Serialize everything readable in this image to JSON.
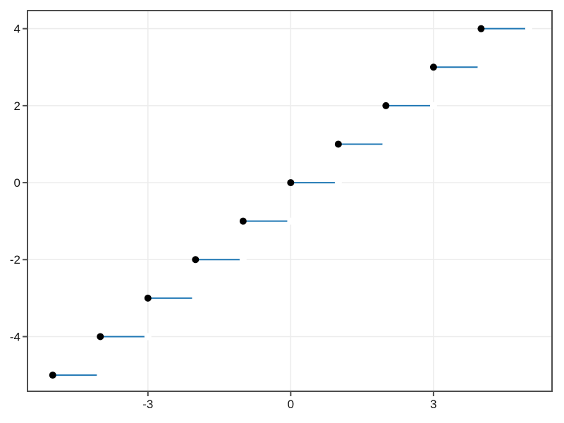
{
  "chart_data": {
    "type": "line",
    "subtype": "step-function-floor",
    "title": "",
    "xlabel": "",
    "ylabel": "",
    "xlim": [
      -5.53,
      5.49
    ],
    "ylim": [
      -5.42,
      4.47
    ],
    "grid": true,
    "legend": false,
    "xticks": [
      -3,
      0,
      3
    ],
    "xtick_labels": [
      "-3",
      "0",
      "3"
    ],
    "yticks": [
      -4,
      -2,
      0,
      2,
      4
    ],
    "ytick_labels": [
      "-4",
      "-2",
      "0",
      "2",
      "4"
    ],
    "steps": [
      {
        "y": -5,
        "x0": -5,
        "x1": -4
      },
      {
        "y": -4,
        "x0": -4,
        "x1": -3
      },
      {
        "y": -3,
        "x0": -3,
        "x1": -2
      },
      {
        "y": -2,
        "x0": -2,
        "x1": -1
      },
      {
        "y": -1,
        "x0": -1,
        "x1": 0
      },
      {
        "y": 0,
        "x0": 0,
        "x1": 1
      },
      {
        "y": 1,
        "x0": 1,
        "x1": 2
      },
      {
        "y": 2,
        "x0": 2,
        "x1": 3
      },
      {
        "y": 3,
        "x0": 3,
        "x1": 4
      },
      {
        "y": 4,
        "x0": 4,
        "x1": 5
      }
    ],
    "closed_points": [
      [
        -5,
        -5
      ],
      [
        -4,
        -4
      ],
      [
        -3,
        -3
      ],
      [
        -2,
        -2
      ],
      [
        -1,
        -1
      ],
      [
        0,
        0
      ],
      [
        1,
        1
      ],
      [
        2,
        2
      ],
      [
        3,
        3
      ],
      [
        4,
        4
      ]
    ],
    "open_points": [
      [
        -4,
        -5
      ],
      [
        -3,
        -4
      ],
      [
        -2,
        -3
      ],
      [
        -1,
        -2
      ],
      [
        0,
        -1
      ],
      [
        1,
        0
      ],
      [
        2,
        1
      ],
      [
        3,
        2
      ],
      [
        4,
        3
      ],
      [
        5,
        4
      ]
    ],
    "style": {
      "line_color": "#1f77b4",
      "line_width": 2,
      "marker_color": "#000000",
      "marker_radius": 5,
      "open_marker_fill": "#ffffff",
      "grid_color": "#ececec",
      "grid_width": 1.5,
      "frame_color": "#4d4d4d",
      "frame_width": 2,
      "tick_color": "#4d4d4d",
      "tick_length": 6,
      "tick_label_color": "#141414",
      "tick_label_size": 17,
      "background": "#ffffff"
    }
  }
}
